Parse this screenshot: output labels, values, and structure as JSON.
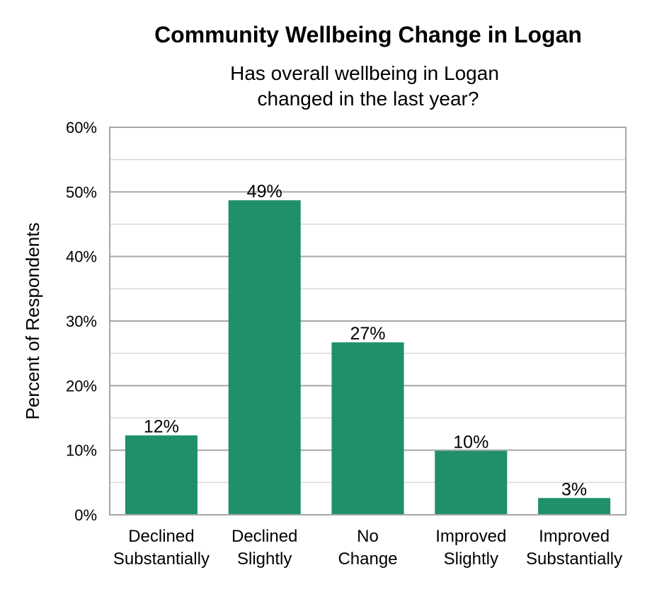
{
  "chart_data": {
    "type": "bar",
    "title": "Community Wellbeing Change in Logan",
    "subtitle_lines": [
      "Has overall wellbeing in Logan",
      "changed in the last year?"
    ],
    "xlabel": "",
    "ylabel": "Percent of Respondents",
    "categories": [
      [
        "Declined",
        "Substantially"
      ],
      [
        "Declined",
        "Slightly"
      ],
      [
        "No",
        "Change"
      ],
      [
        "Improved",
        "Slightly"
      ],
      [
        "Improved",
        "Substantially"
      ]
    ],
    "values": [
      12.3,
      48.7,
      26.7,
      9.9,
      2.6
    ],
    "data_labels": [
      "12%",
      "49%",
      "27%",
      "10%",
      "3%"
    ],
    "ylim": [
      0,
      60
    ],
    "yticks": [
      0,
      10,
      20,
      30,
      40,
      50,
      60
    ],
    "ytick_labels": [
      "0%",
      "10%",
      "20%",
      "30%",
      "40%",
      "50%",
      "60%"
    ],
    "grid": true,
    "minor_grid": true,
    "legend": "none",
    "colors": {
      "bar": "#1f9068",
      "major_grid": "#a6a6a6",
      "minor_grid": "#d9d9d9",
      "frame": "#a6a6a6"
    }
  }
}
